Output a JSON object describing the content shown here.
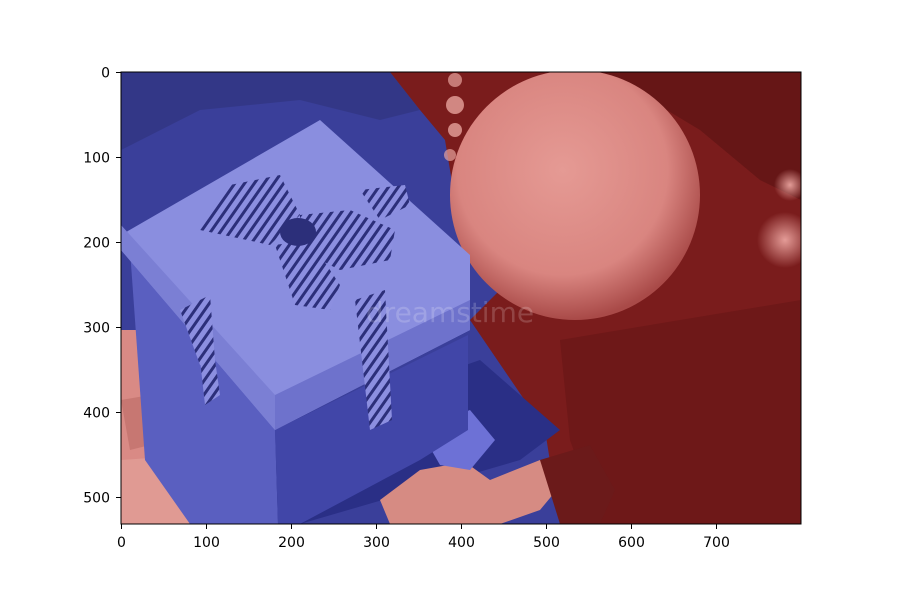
{
  "image": {
    "description": "Gift box with striped ribbon bow next to Christmas tree bauble, colored as a two-class segmentation overlay",
    "segments": [
      {
        "label": "gift-box-region",
        "color": "#3a3f9a"
      },
      {
        "label": "tree-bauble-region",
        "color": "#7a1c1c"
      }
    ],
    "watermark": "dreamstime"
  },
  "axes": {
    "x_ticks": [
      "0",
      "100",
      "200",
      "300",
      "400",
      "500",
      "600",
      "700"
    ],
    "y_ticks": [
      "0",
      "100",
      "200",
      "300",
      "400",
      "500"
    ],
    "x_range": [
      0,
      800
    ],
    "y_range": [
      0,
      533
    ]
  }
}
